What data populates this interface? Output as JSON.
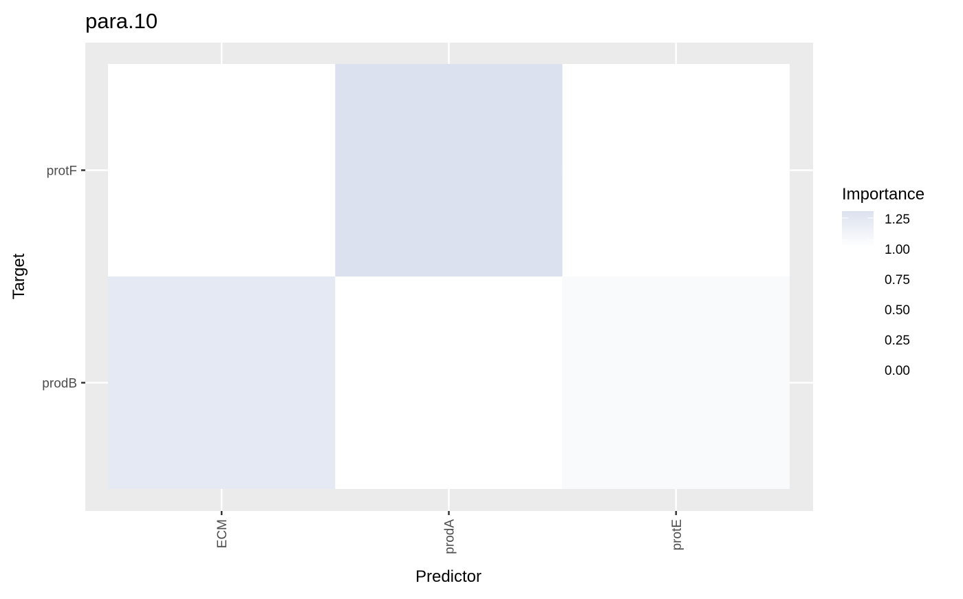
{
  "chart_data": {
    "type": "heatmap",
    "title": "para.10",
    "xlabel": "Predictor",
    "ylabel": "Target",
    "x_categories": [
      "ECM",
      "prodA",
      "protE"
    ],
    "y_categories": [
      "prodB",
      "protF"
    ],
    "cells": [
      {
        "x": "ECM",
        "y": "protF",
        "value": 0.0
      },
      {
        "x": "prodA",
        "y": "protF",
        "value": 1.3
      },
      {
        "x": "protE",
        "y": "protF",
        "value": 0.0
      },
      {
        "x": "ECM",
        "y": "prodB",
        "value": 1.22
      },
      {
        "x": "prodA",
        "y": "prodB",
        "value": 0.0
      },
      {
        "x": "protE",
        "y": "prodB",
        "value": 1.05
      }
    ],
    "legend": {
      "title": "Importance",
      "ticks": [
        "1.25",
        "1.00",
        "0.75",
        "0.50",
        "0.25",
        "0.00"
      ],
      "tick_values": [
        1.25,
        1.0,
        0.75,
        0.5,
        0.25,
        0.0
      ],
      "range": [
        1.0,
        1.3
      ],
      "color_low": "#ffffff",
      "color_high": "#dbe1ee",
      "placement": "right"
    },
    "panel_background": "#ebebeb",
    "grid_color": "#ffffff",
    "grid": true
  }
}
